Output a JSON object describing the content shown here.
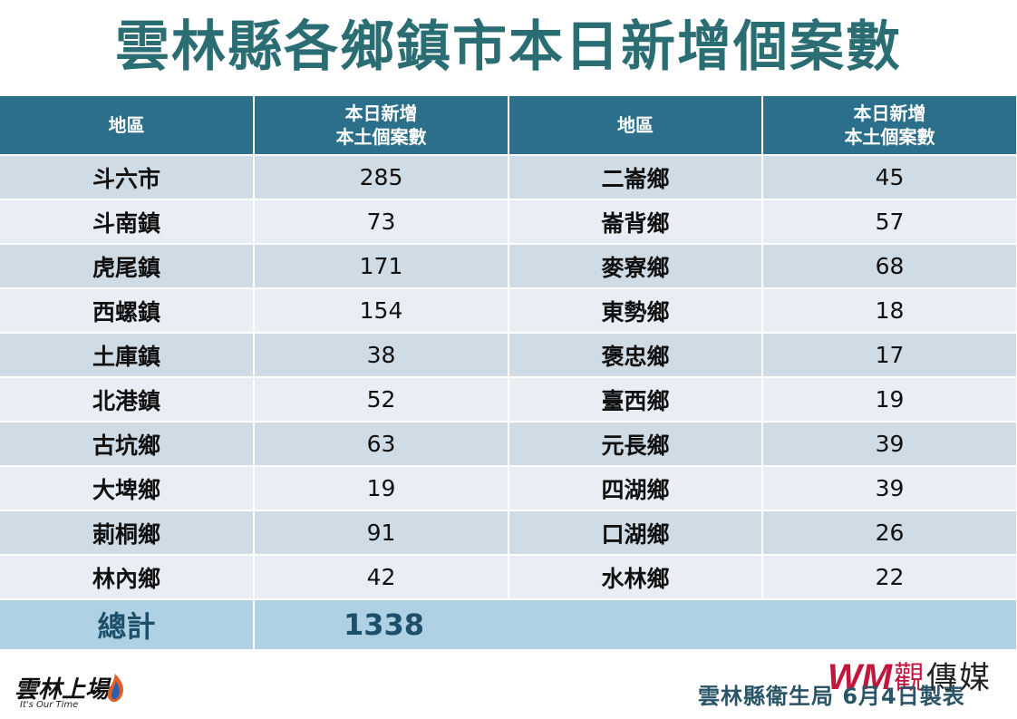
{
  "title": "雲林縣各鄉鎮市本日新增個案數",
  "table": {
    "headers": {
      "region": "地區",
      "cases_line1": "本日新增",
      "cases_line2": "本土個案數"
    },
    "rows": [
      {
        "left_name": "斗六市",
        "left_value": "285",
        "right_name": "二崙鄉",
        "right_value": "45"
      },
      {
        "left_name": "斗南鎮",
        "left_value": "73",
        "right_name": "崙背鄉",
        "right_value": "57"
      },
      {
        "left_name": "虎尾鎮",
        "left_value": "171",
        "right_name": "麥寮鄉",
        "right_value": "68"
      },
      {
        "left_name": "西螺鎮",
        "left_value": "154",
        "right_name": "東勢鄉",
        "right_value": "18"
      },
      {
        "left_name": "土庫鎮",
        "left_value": "38",
        "right_name": "褒忠鄉",
        "right_value": "17"
      },
      {
        "left_name": "北港鎮",
        "left_value": "52",
        "right_name": "臺西鄉",
        "right_value": "19"
      },
      {
        "left_name": "古坑鄉",
        "left_value": "63",
        "right_name": "元長鄉",
        "right_value": "39"
      },
      {
        "left_name": "大埤鄉",
        "left_value": "19",
        "right_name": "四湖鄉",
        "right_value": "39"
      },
      {
        "left_name": "莿桐鄉",
        "left_value": "91",
        "right_name": "口湖鄉",
        "right_value": "26"
      },
      {
        "left_name": "林內鄉",
        "left_value": "42",
        "right_name": "水林鄉",
        "right_value": "22"
      }
    ],
    "total_label": "總計",
    "total_value": "1338"
  },
  "logo_left": {
    "brand": "雲林上場",
    "tagline": "It's Our Time"
  },
  "media_logo": {
    "mark": "WM",
    "name_first": "觀",
    "name_rest": "傳媒"
  },
  "footer": "雲林縣衛生局  6月4日製表",
  "colors": {
    "title": "#2a6e73",
    "header_bg": "#2b6f8a",
    "row_dark": "#cfdbe5",
    "row_light": "#e8eef3",
    "total_bg": "#aed2e3",
    "brand_red": "#c0183c"
  }
}
